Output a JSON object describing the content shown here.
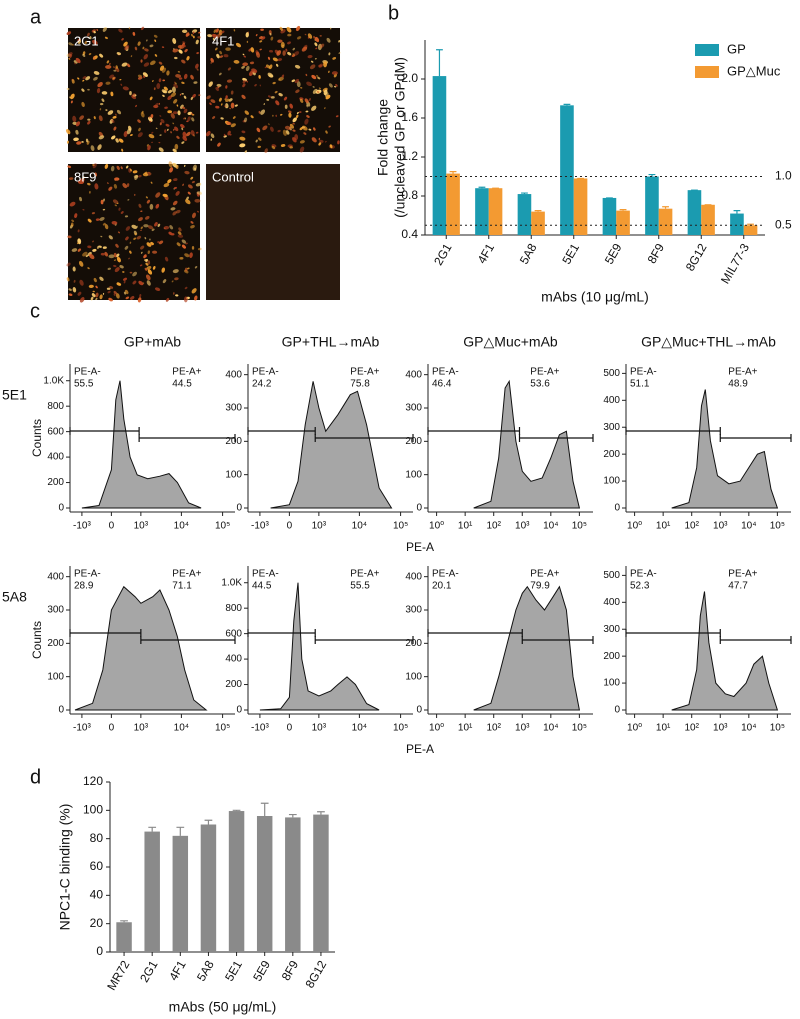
{
  "figure": {
    "panel_labels": [
      "a",
      "b",
      "c",
      "d"
    ],
    "images": [
      {
        "label": "2G1"
      },
      {
        "label": "4F1"
      },
      {
        "label": "8F9"
      },
      {
        "label": "Control"
      }
    ],
    "flow_grid": {
      "column_titles": [
        "GP+mAb",
        "GP+THL→mAb",
        "GP△Muc+mAb",
        "GP△Muc+THL→mAb"
      ],
      "rows": [
        {
          "label": "5E1",
          "ylabel": "Counts",
          "xlabel": "PE-A"
        },
        {
          "label": "5A8",
          "ylabel": "Counts",
          "xlabel": "PE-A"
        }
      ]
    }
  },
  "chart_data": [
    {
      "type": "bar",
      "ylabel": [
        "Fold change",
        "(/uncleaved GP or GPdM)"
      ],
      "xlabel": "mAbs (10 μg/mL)",
      "categories": [
        "2G1",
        "4F1",
        "5A8",
        "5E1",
        "5E9",
        "8F9",
        "8G12",
        "MIL77-3"
      ],
      "series": [
        {
          "name": "GP",
          "color": "#1b9bb0",
          "values": [
            2.03,
            0.88,
            0.82,
            1.73,
            0.78,
            1.0,
            0.86,
            0.62
          ],
          "errors": [
            0.27,
            0.01,
            0.01,
            0.01,
            0.0,
            0.02,
            0.0,
            0.03
          ]
        },
        {
          "name": "GP△Muc",
          "color": "#f39a32",
          "values": [
            1.03,
            0.88,
            0.64,
            0.98,
            0.65,
            0.67,
            0.71,
            0.5
          ],
          "errors": [
            0.02,
            0.0,
            0.01,
            0.0,
            0.01,
            0.02,
            0.0,
            0.01
          ]
        }
      ],
      "ylim": [
        0.4,
        2.4
      ],
      "yticks": [
        0.4,
        0.8,
        1.2,
        1.6,
        {
          "value": 2,
          "label": "2.0"
        }
      ],
      "reference_lines": [
        {
          "value": 1,
          "label": "1.0"
        },
        {
          "value": 0.5,
          "label": "0.5"
        }
      ],
      "legend": "upper right"
    },
    {
      "type": "area",
      "xscale": "biex",
      "color": "#a6a6a6",
      "xlim": [
        -2000,
        200000
      ],
      "xticks": [
        {
          "value": -1000,
          "label": "-10³"
        },
        0,
        {
          "value": 1000,
          "label": "10³"
        },
        {
          "value": 10000,
          "label": "10⁴"
        },
        {
          "value": 100000,
          "label": "10⁵"
        }
      ],
      "ylim": [
        0,
        1100
      ],
      "yticks": [
        0,
        200,
        400,
        600,
        800,
        {
          "value": 1000,
          "label": "1.0K"
        }
      ],
      "x": [
        -1000,
        -300,
        0,
        100,
        200,
        300,
        500,
        800,
        1500,
        3000,
        5000,
        8000,
        15000,
        30000
      ],
      "values": [
        0,
        20,
        300,
        850,
        1000,
        700,
        400,
        260,
        230,
        250,
        270,
        200,
        40,
        0
      ],
      "gates": [
        {
          "name": "PE-A-",
          "percent": 55.5,
          "range": [
            -2000,
            900
          ]
        },
        {
          "name": "PE-A+",
          "percent": 44.5,
          "range": [
            900,
            200000
          ]
        }
      ]
    },
    {
      "type": "area",
      "xscale": "biex",
      "color": "#a6a6a6",
      "xlim": [
        -2000,
        200000
      ],
      "xticks": [
        {
          "value": -1000,
          "label": "-10³"
        },
        0,
        {
          "value": 1000,
          "label": "10³"
        },
        {
          "value": 10000,
          "label": "10⁴"
        },
        {
          "value": 100000,
          "label": "10⁵"
        }
      ],
      "ylim": [
        0,
        420
      ],
      "yticks": [
        0,
        100,
        200,
        300,
        400
      ],
      "x": [
        -500,
        0,
        200,
        400,
        700,
        1000,
        1500,
        3000,
        6000,
        9000,
        15000,
        30000,
        60000
      ],
      "values": [
        0,
        10,
        80,
        250,
        380,
        300,
        230,
        280,
        340,
        350,
        250,
        60,
        0
      ],
      "gates": [
        {
          "name": "PE-A-",
          "percent": 24.2,
          "range": [
            -2000,
            800
          ]
        },
        {
          "name": "PE-A+",
          "percent": 75.8,
          "range": [
            800,
            200000
          ]
        }
      ]
    },
    {
      "type": "area",
      "xscale": "log",
      "color": "#a6a6a6",
      "xlim": [
        0.5,
        300000
      ],
      "xticks": [
        {
          "value": 1,
          "label": "10⁰"
        },
        {
          "value": 10,
          "label": "10¹"
        },
        {
          "value": 100,
          "label": "10²"
        },
        {
          "value": 1000,
          "label": "10³"
        },
        {
          "value": 10000,
          "label": "10⁴"
        },
        {
          "value": 100000,
          "label": "10⁵"
        }
      ],
      "ylim": [
        0,
        420
      ],
      "yticks": [
        0,
        100,
        200,
        300,
        400
      ],
      "x": [
        20,
        80,
        150,
        250,
        350,
        600,
        1000,
        2000,
        5000,
        10000,
        20000,
        35000,
        60000,
        100000
      ],
      "values": [
        0,
        20,
        150,
        360,
        380,
        200,
        110,
        80,
        90,
        150,
        220,
        230,
        80,
        0
      ],
      "gates": [
        {
          "name": "PE-A-",
          "percent": 46.4,
          "range": [
            0.5,
            800
          ]
        },
        {
          "name": "PE-A+",
          "percent": 53.6,
          "range": [
            800,
            300000
          ]
        }
      ]
    },
    {
      "type": "area",
      "xscale": "log",
      "color": "#a6a6a6",
      "xlim": [
        0.5,
        300000
      ],
      "xticks": [
        {
          "value": 1,
          "label": "10⁰"
        },
        {
          "value": 10,
          "label": "10¹"
        },
        {
          "value": 100,
          "label": "10²"
        },
        {
          "value": 1000,
          "label": "10³"
        },
        {
          "value": 10000,
          "label": "10⁴"
        },
        {
          "value": 100000,
          "label": "10⁵"
        }
      ],
      "ylim": [
        0,
        520
      ],
      "yticks": [
        0,
        100,
        200,
        300,
        400,
        500
      ],
      "x": [
        20,
        80,
        150,
        220,
        300,
        450,
        800,
        2000,
        5000,
        10000,
        20000,
        35000,
        60000,
        100000
      ],
      "values": [
        0,
        20,
        150,
        380,
        440,
        250,
        120,
        90,
        100,
        150,
        200,
        210,
        70,
        0
      ],
      "gates": [
        {
          "name": "PE-A-",
          "percent": 51.1,
          "range": [
            0.5,
            1000
          ]
        },
        {
          "name": "PE-A+",
          "percent": 48.9,
          "range": [
            1000,
            300000
          ]
        }
      ]
    },
    {
      "type": "area",
      "xscale": "biex",
      "color": "#a6a6a6",
      "xlim": [
        -2000,
        200000
      ],
      "xticks": [
        {
          "value": -1000,
          "label": "-10³"
        },
        0,
        {
          "value": 1000,
          "label": "10³"
        },
        {
          "value": 10000,
          "label": "10⁴"
        },
        {
          "value": 100000,
          "label": "10⁵"
        }
      ],
      "ylim": [
        0,
        420
      ],
      "yticks": [
        0,
        100,
        200,
        300,
        400
      ],
      "x": [
        -1500,
        -500,
        -200,
        0,
        300,
        700,
        1000,
        2000,
        3000,
        5000,
        8000,
        12000,
        20000,
        40000
      ],
      "values": [
        0,
        20,
        120,
        300,
        370,
        340,
        320,
        340,
        360,
        300,
        220,
        120,
        30,
        0
      ],
      "gates": [
        {
          "name": "PE-A-",
          "percent": 28.9,
          "range": [
            -2000,
            1000
          ]
        },
        {
          "name": "PE-A+",
          "percent": 71.1,
          "range": [
            1000,
            200000
          ]
        }
      ]
    },
    {
      "type": "area",
      "xscale": "biex",
      "color": "#a6a6a6",
      "xlim": [
        -2000,
        200000
      ],
      "xticks": [
        {
          "value": -1000,
          "label": "-10³"
        },
        0,
        {
          "value": 1000,
          "label": "10³"
        },
        {
          "value": 10000,
          "label": "10⁴"
        },
        {
          "value": 100000,
          "label": "10⁵"
        }
      ],
      "ylim": [
        0,
        1100
      ],
      "yticks": [
        0,
        200,
        400,
        600,
        800,
        {
          "value": 1000,
          "label": "1.0K"
        }
      ],
      "x": [
        -1000,
        -200,
        0,
        100,
        200,
        300,
        500,
        1000,
        2000,
        3000,
        5000,
        8000,
        15000,
        30000
      ],
      "values": [
        0,
        10,
        100,
        700,
        1000,
        400,
        150,
        110,
        150,
        200,
        260,
        200,
        50,
        0
      ],
      "gates": [
        {
          "name": "PE-A-",
          "percent": 44.5,
          "range": [
            -2000,
            800
          ]
        },
        {
          "name": "PE-A+",
          "percent": 55.5,
          "range": [
            800,
            200000
          ]
        }
      ]
    },
    {
      "type": "area",
      "xscale": "log",
      "color": "#a6a6a6",
      "xlim": [
        0.5,
        300000
      ],
      "xticks": [
        {
          "value": 1,
          "label": "10⁰"
        },
        {
          "value": 10,
          "label": "10¹"
        },
        {
          "value": 100,
          "label": "10²"
        },
        {
          "value": 1000,
          "label": "10³"
        },
        {
          "value": 10000,
          "label": "10⁴"
        },
        {
          "value": 100000,
          "label": "10⁵"
        }
      ],
      "ylim": [
        0,
        420
      ],
      "yticks": [
        0,
        100,
        200,
        300,
        400
      ],
      "x": [
        20,
        80,
        150,
        300,
        600,
        1000,
        1500,
        3000,
        6000,
        12000,
        20000,
        35000,
        60000,
        100000
      ],
      "values": [
        0,
        20,
        100,
        200,
        300,
        350,
        370,
        330,
        300,
        340,
        370,
        300,
        100,
        0
      ],
      "gates": [
        {
          "name": "PE-A-",
          "percent": 20.1,
          "range": [
            0.5,
            1000
          ]
        },
        {
          "name": "PE-A+",
          "percent": 79.9,
          "range": [
            1000,
            300000
          ]
        }
      ]
    },
    {
      "type": "area",
      "xscale": "log",
      "color": "#a6a6a6",
      "xlim": [
        0.5,
        300000
      ],
      "xticks": [
        {
          "value": 1,
          "label": "10⁰"
        },
        {
          "value": 10,
          "label": "10¹"
        },
        {
          "value": 100,
          "label": "10²"
        },
        {
          "value": 1000,
          "label": "10³"
        },
        {
          "value": 10000,
          "label": "10⁴"
        },
        {
          "value": 100000,
          "label": "10⁵"
        }
      ],
      "ylim": [
        0,
        520
      ],
      "yticks": [
        0,
        100,
        200,
        300,
        400,
        500
      ],
      "x": [
        20,
        80,
        150,
        200,
        280,
        400,
        700,
        1500,
        3000,
        8000,
        15000,
        30000,
        50000,
        100000
      ],
      "values": [
        0,
        20,
        150,
        350,
        440,
        250,
        100,
        60,
        50,
        100,
        170,
        200,
        100,
        0
      ],
      "gates": [
        {
          "name": "PE-A-",
          "percent": 52.3,
          "range": [
            0.5,
            1000
          ]
        },
        {
          "name": "PE-A+",
          "percent": 47.7,
          "range": [
            1000,
            300000
          ]
        }
      ]
    },
    {
      "type": "bar",
      "ylabel": [
        "NPC1-C binding (%)"
      ],
      "xlabel": "mAbs (50 μg/mL)",
      "categories": [
        "MR72",
        "2G1",
        "4F1",
        "5A8",
        "5E1",
        "5E9",
        "8F9",
        "8G12"
      ],
      "series": [
        {
          "color": "#8a8a8a",
          "values": [
            21,
            85,
            82,
            90,
            99.5,
            96,
            95,
            97
          ],
          "errors": [
            1,
            3,
            6,
            3,
            0.5,
            9,
            2,
            2
          ]
        }
      ],
      "ylim": [
        0,
        120
      ],
      "yticks": [
        0,
        20,
        40,
        60,
        80,
        100,
        120
      ]
    }
  ]
}
